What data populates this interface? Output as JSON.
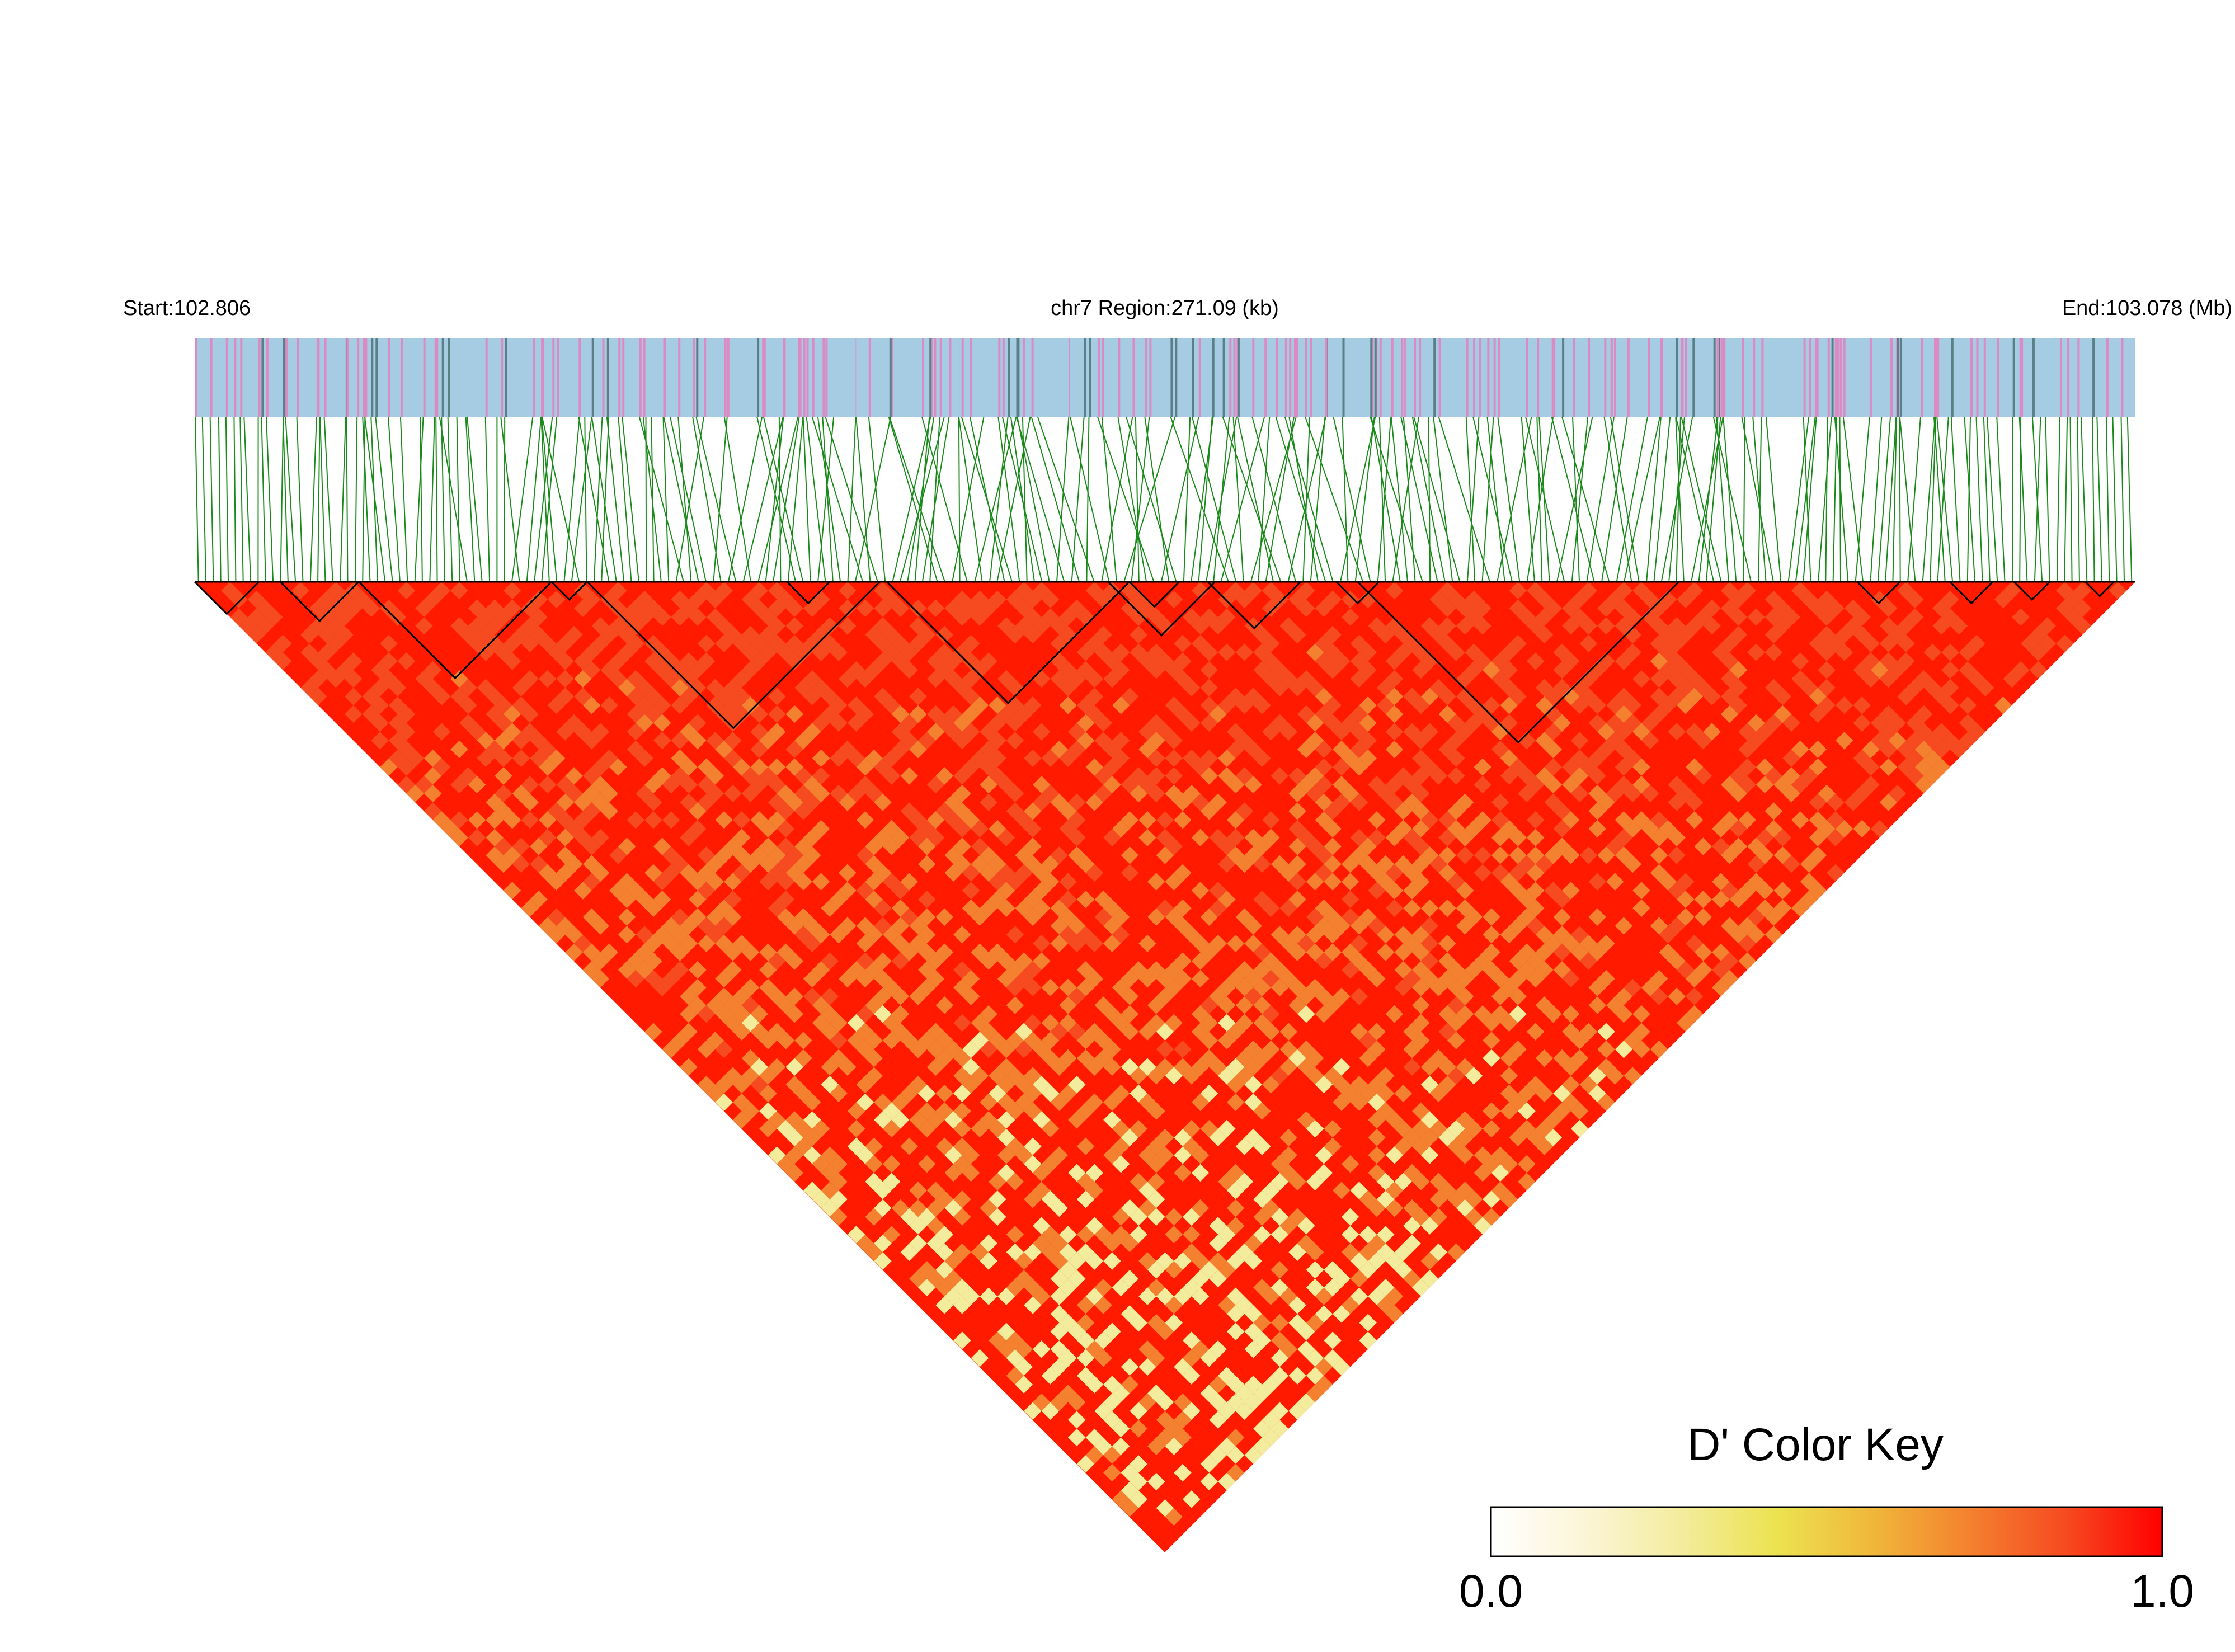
{
  "header": {
    "start_label": "Start:102.806",
    "region_label": "chr7 Region:271.09 (kb)",
    "end_label": "End:103.078 (Mb)"
  },
  "color_key": {
    "title": "D' Color Key",
    "min_label": "0.0",
    "max_label": "1.0",
    "gradient": [
      "#ffffff",
      "#fbf5d6",
      "#f3ec9c",
      "#ece24f",
      "#f0b63a",
      "#f4812f",
      "#f64a20",
      "#ff0000"
    ]
  },
  "colors": {
    "snp_bar_a": "#a6cce3",
    "snp_bar_b": "#dc8ac4",
    "snp_bar_c": "#5a7f86",
    "connector": "#1a8a1a",
    "heat_high": "#ff1a00",
    "heat_mid": "#f4812f",
    "heat_low": "#f3ec9c",
    "block_outline": "#000000"
  },
  "chart_data": {
    "type": "heatmap",
    "description_metric": "D'",
    "chromosome": "chr7",
    "region_start_mb": 102.806,
    "region_end_mb": 103.078,
    "region_size_kb": 271.09,
    "value_range": [
      0.0,
      1.0
    ],
    "dominant_value": 1.0,
    "ld_blocks_mb": [
      [
        102.806,
        102.815
      ],
      [
        102.818,
        102.829
      ],
      [
        102.829,
        102.856
      ],
      [
        102.856,
        102.861
      ],
      [
        102.861,
        102.902
      ],
      [
        102.889,
        102.895
      ],
      [
        102.903,
        102.937
      ],
      [
        102.934,
        102.949
      ],
      [
        102.937,
        102.944
      ],
      [
        102.948,
        102.961
      ],
      [
        102.966,
        102.972
      ],
      [
        102.969,
        103.014
      ],
      [
        103.039,
        103.045
      ],
      [
        103.052,
        103.058
      ],
      [
        103.061,
        103.066
      ],
      [
        103.071,
        103.075
      ]
    ]
  }
}
